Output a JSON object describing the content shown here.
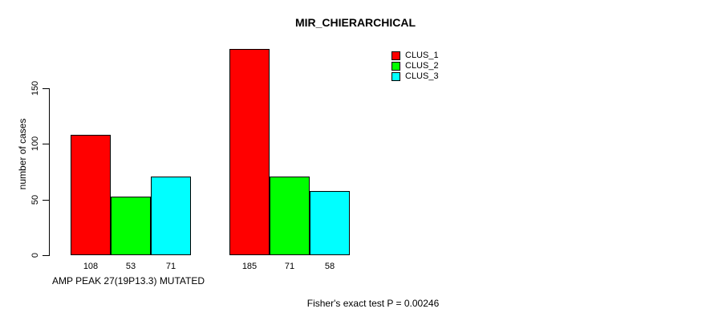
{
  "chart_data": {
    "type": "bar",
    "title": "MIR_CHIERARCHICAL",
    "ylabel": "number of cases",
    "xlabel": "AMP PEAK 27(19P13.3) MUTATED",
    "categories": [
      "AMP PEAK 27(19P13.3) MUTATED",
      ""
    ],
    "series": [
      {
        "name": "CLUS_1",
        "color": "#FF0000",
        "values": [
          108,
          185
        ]
      },
      {
        "name": "CLUS_2",
        "color": "#00FF00",
        "values": [
          53,
          71
        ]
      },
      {
        "name": "CLUS_3",
        "color": "#00FFFF",
        "values": [
          71,
          58
        ]
      }
    ],
    "yticks": [
      0,
      50,
      100,
      150
    ],
    "ylim": [
      0,
      185
    ],
    "bar_value_labels": [
      [
        "108",
        "53",
        "71"
      ],
      [
        "185",
        "71",
        "58"
      ]
    ],
    "legend_position": "top-right",
    "grid": false,
    "background_color": "#FFFFFF",
    "axis_color": "#000000",
    "annotation": "Fisher's exact test P = 0.00246"
  }
}
